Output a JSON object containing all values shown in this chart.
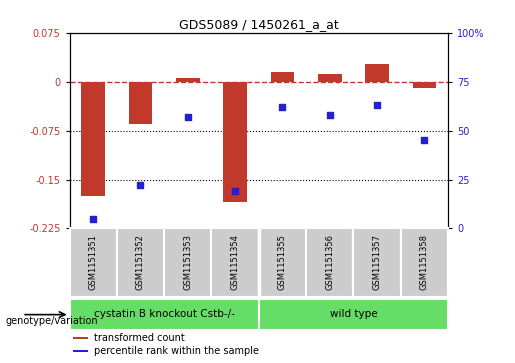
{
  "title": "GDS5089 / 1450261_a_at",
  "samples": [
    "GSM1151351",
    "GSM1151352",
    "GSM1151353",
    "GSM1151354",
    "GSM1151355",
    "GSM1151356",
    "GSM1151357",
    "GSM1151358"
  ],
  "transformed_count": [
    -0.175,
    -0.065,
    0.005,
    -0.185,
    0.015,
    0.012,
    0.027,
    -0.01
  ],
  "percentile_rank": [
    5,
    22,
    57,
    19,
    62,
    58,
    63,
    45
  ],
  "bar_color": "#c0392b",
  "dot_color": "#2222cc",
  "ylim_left": [
    -0.225,
    0.075
  ],
  "ylim_right": [
    0,
    100
  ],
  "yticks_left": [
    0.075,
    0,
    -0.075,
    -0.15,
    -0.225
  ],
  "yticks_right": [
    100,
    75,
    50,
    25,
    0
  ],
  "hline_y": 0,
  "dotted_lines": [
    -0.075,
    -0.15
  ],
  "groups": [
    {
      "label": "cystatin B knockout Cstb-/-",
      "start": 0,
      "end": 4,
      "color": "#66dd66"
    },
    {
      "label": "wild type",
      "start": 4,
      "end": 8,
      "color": "#66dd66"
    }
  ],
  "group_label_prefix": "genotype/variation",
  "legend_items": [
    {
      "label": "transformed count",
      "color": "#c0392b"
    },
    {
      "label": "percentile rank within the sample",
      "color": "#2222cc"
    }
  ],
  "bg_color": "#ffffff",
  "plot_bg": "#ffffff",
  "tick_label_color_left": "#c0392b",
  "tick_label_color_right": "#2222cc",
  "sample_bg_color": "#cccccc",
  "sample_border_color": "#ffffff"
}
